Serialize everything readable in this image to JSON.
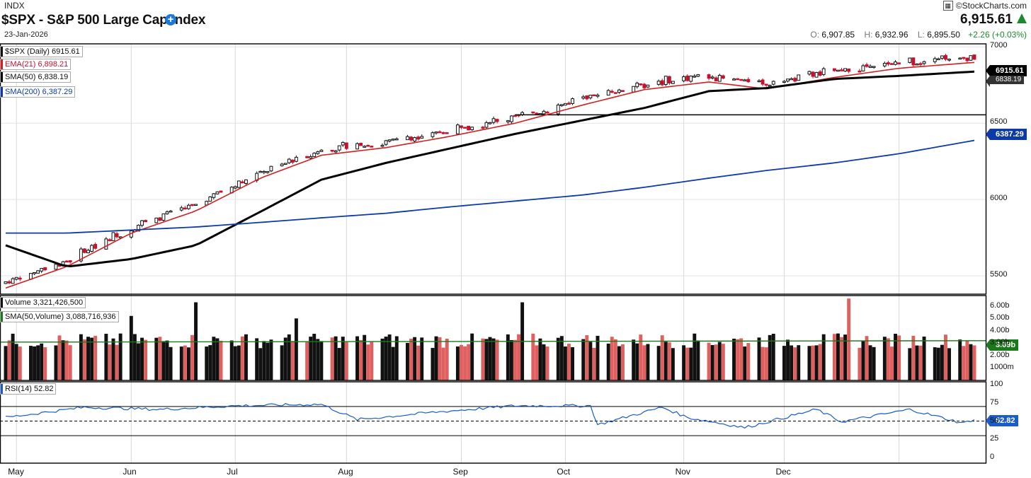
{
  "header": {
    "exchange": "INDX",
    "title": "$SPX - S&P 500 Large Cap Index",
    "date": "23-Jan-2026",
    "brand": "©StockCharts.com",
    "last": "6,915.61",
    "open_label": "O:",
    "open": "6,907.85",
    "high_label": "H:",
    "high": "6,932.96",
    "low_label": "L:",
    "low": "6,895.50",
    "change": "+2.26 (+0.03%)"
  },
  "colors": {
    "up": "#111111",
    "down": "#c8102e",
    "vol_down": "#e06060",
    "ema": "#d22020",
    "sma50": "#000000",
    "sma200": "#0d3aa6",
    "vol_sma": "#1a7a1a",
    "rsi": "#1a5cc8",
    "accent_up": "#1a8a2e"
  },
  "legends": {
    "price": "$SPX (Daily) 6915.61",
    "ema": "EMA(21) 6,898.21",
    "sma50": "SMA(50) 6,838.19",
    "sma200": "SMA(200) 6,387.29",
    "volume": "Volume 3,321,426,500",
    "vol_sma": "SMA(50,Volume) 3,088,716,936",
    "rsi": "RSI(14) 52.82"
  },
  "badges": {
    "price": "6915.61",
    "sma50": "6838.19",
    "sma200": "6387.29",
    "vol_sma": "3.09b",
    "rsi": "52.82"
  },
  "axes": {
    "price_ticks": [
      "7000",
      "6500",
      "6000",
      "5500"
    ],
    "volume_ticks": [
      "6.00b",
      "5.00b",
      "4.00b",
      "3.00b",
      "2.00b",
      "1000m"
    ],
    "rsi_ticks": [
      "100",
      "75",
      "50",
      "25",
      "0"
    ],
    "months": [
      "May",
      "Jun",
      "Jul",
      "Aug",
      "Sep",
      "Oct",
      "Nov",
      "Dec"
    ]
  },
  "chart_data": [
    {
      "type": "candlestick",
      "title": "$SPX (Daily)",
      "x_range": [
        "2025-04-28",
        "2026-01-23"
      ],
      "ylim": [
        5380,
        7020
      ],
      "series": [
        {
          "name": "EMA(21)",
          "x": [
            "2025-04-28",
            "2025-05-15",
            "2025-06-02",
            "2025-06-20",
            "2025-07-08",
            "2025-07-25",
            "2025-08-12",
            "2025-08-29",
            "2025-09-17",
            "2025-10-06",
            "2025-10-23",
            "2025-11-10",
            "2025-11-26",
            "2025-12-15",
            "2026-01-02",
            "2026-01-23"
          ],
          "y": [
            5420,
            5560,
            5780,
            5925,
            6140,
            6290,
            6340,
            6410,
            6500,
            6620,
            6720,
            6770,
            6725,
            6800,
            6860,
            6898.21
          ]
        },
        {
          "name": "SMA(50)",
          "x": [
            "2025-04-28",
            "2025-05-15",
            "2025-06-02",
            "2025-06-20",
            "2025-07-08",
            "2025-07-25",
            "2025-08-12",
            "2025-08-29",
            "2025-09-17",
            "2025-10-06",
            "2025-10-23",
            "2025-11-10",
            "2025-11-26",
            "2025-12-15",
            "2026-01-02",
            "2026-01-23"
          ],
          "y": [
            5700,
            5560,
            5610,
            5700,
            5920,
            6130,
            6240,
            6330,
            6430,
            6520,
            6600,
            6710,
            6730,
            6790,
            6810,
            6838.19
          ]
        },
        {
          "name": "SMA(200)",
          "x": [
            "2025-04-28",
            "2025-05-15",
            "2025-06-02",
            "2025-06-20",
            "2025-07-08",
            "2025-07-25",
            "2025-08-12",
            "2025-08-29",
            "2025-09-17",
            "2025-10-06",
            "2025-10-23",
            "2025-11-10",
            "2025-11-26",
            "2025-12-15",
            "2026-01-02",
            "2026-01-23"
          ],
          "y": [
            5780,
            5780,
            5800,
            5820,
            5850,
            5880,
            5910,
            5950,
            5990,
            6030,
            6080,
            6140,
            6190,
            6240,
            6300,
            6387.29
          ]
        }
      ],
      "horizontal_lines": [
        6555
      ],
      "last_price": 6915.61
    },
    {
      "type": "bar",
      "title": "Volume",
      "ylim": [
        0,
        6500000000
      ],
      "last_volume": 3321426500,
      "vol_sma50": 3088716936,
      "spikes": [
        {
          "x": "2025-06-20",
          "value": 6300000000
        },
        {
          "x": "2025-09-19",
          "value": 6300000000
        },
        {
          "x": "2025-12-19",
          "value": 6600000000
        },
        {
          "x": "2025-06-02",
          "value": 5200000000
        },
        {
          "x": "2025-07-18",
          "value": 5000000000
        }
      ]
    },
    {
      "type": "line",
      "title": "RSI(14)",
      "ylim": [
        0,
        100
      ],
      "levels": [
        70,
        50,
        30
      ],
      "x": [
        "2025-04-28",
        "2025-05-20",
        "2025-06-10",
        "2025-07-01",
        "2025-07-25",
        "2025-08-04",
        "2025-08-25",
        "2025-09-17",
        "2025-10-08",
        "2025-10-10",
        "2025-10-28",
        "2025-11-04",
        "2025-11-20",
        "2025-12-10",
        "2025-12-17",
        "2026-01-05",
        "2026-01-20",
        "2026-01-23"
      ],
      "y": [
        55,
        69,
        66,
        71,
        73,
        52,
        62,
        71,
        71,
        45,
        69,
        55,
        41,
        66,
        49,
        66,
        47,
        52.82
      ]
    }
  ]
}
